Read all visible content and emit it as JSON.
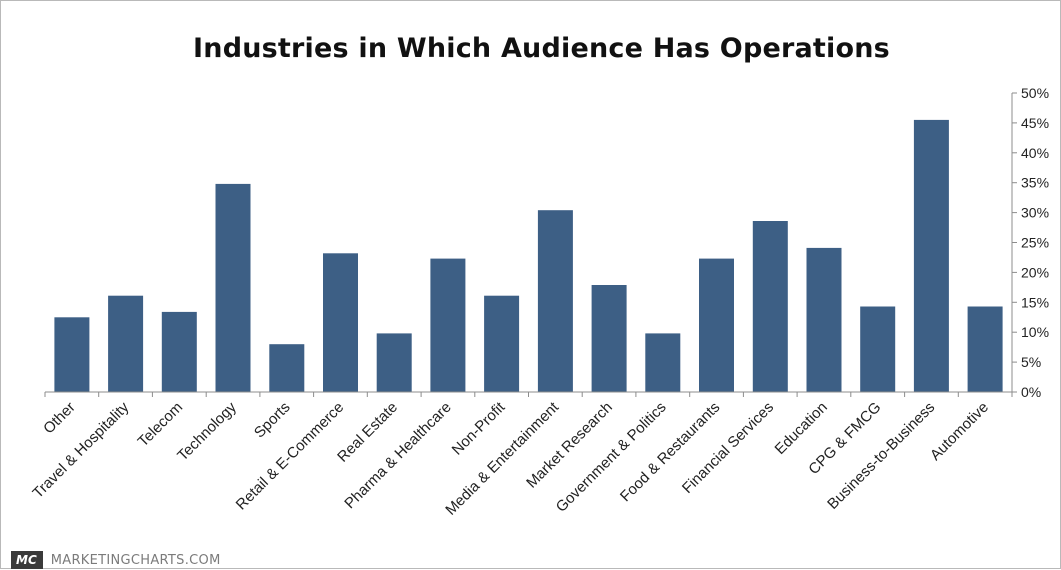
{
  "chart_data": {
    "type": "bar",
    "title": "Industries in Which Audience Has Operations",
    "categories": [
      "Other",
      "Travel & Hospitality",
      "Telecom",
      "Technology",
      "Sports",
      "Retail & E-Commerce",
      "Real Estate",
      "Pharma & Healthcare",
      "Non-Profit",
      "Media & Entertainment",
      "Market Research",
      "Government & Politics",
      "Food & Restaurants",
      "Financial Services",
      "Education",
      "CPG & FMCG",
      "Business-to-Business",
      "Automotive"
    ],
    "values": [
      12.5,
      16.1,
      13.4,
      34.8,
      8.0,
      23.2,
      9.8,
      22.3,
      16.1,
      30.4,
      17.9,
      9.8,
      22.3,
      28.6,
      24.1,
      14.3,
      45.5,
      14.3
    ],
    "xlabel": "",
    "ylabel": "",
    "ylim": [
      0,
      50
    ],
    "yticks": [
      0,
      5,
      10,
      15,
      20,
      25,
      30,
      35,
      40,
      45,
      50
    ],
    "ytick_labels": [
      "0%",
      "5%",
      "10%",
      "15%",
      "20%",
      "25%",
      "30%",
      "35%",
      "40%",
      "45%",
      "50%"
    ],
    "y_axis_side": "right",
    "grid": false,
    "legend": "none",
    "bar_color": "#3d5f85"
  },
  "footer": {
    "logo_text": "MC",
    "brand_text": "MARKETINGCHARTS.COM"
  }
}
